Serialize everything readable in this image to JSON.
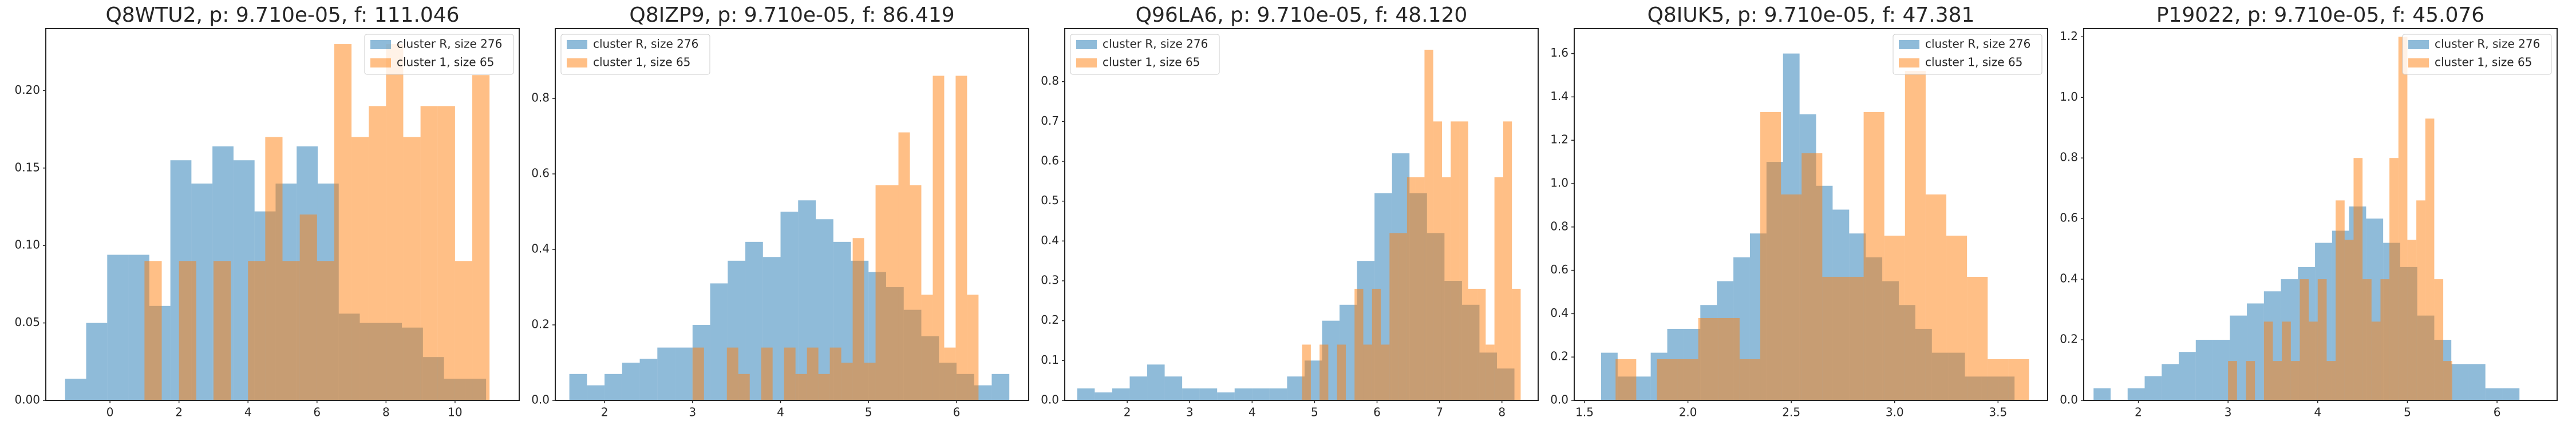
{
  "chart_data": [
    {
      "type": "histogram",
      "title": "Q8WTU2, p: 9.710e-05, f: 111.046",
      "legend": "upper right",
      "xlim": [
        -1.86,
        11.86
      ],
      "xticks": [
        0,
        2,
        4,
        6,
        8,
        10
      ],
      "ylim": [
        0,
        0.24
      ],
      "yticks": [
        {
          "value": 0,
          "label": "0.00"
        },
        0.05,
        {
          "value": 0.1,
          "label": "0.10"
        },
        0.15,
        {
          "value": 0.2,
          "label": "0.20"
        }
      ],
      "series": [
        {
          "name": "cluster R, size 276",
          "color": "#1f77b4",
          "bins": [
            -1.3,
            -0.69,
            -0.08,
            0.53,
            1.14,
            1.75,
            2.36,
            2.97,
            3.58,
            4.19,
            4.8,
            5.41,
            6.02,
            6.63,
            7.24,
            7.85,
            8.46,
            9.07,
            9.68,
            10.29,
            10.9
          ],
          "values": [
            0.014,
            0.05,
            0.094,
            0.094,
            0.061,
            0.155,
            0.14,
            0.164,
            0.155,
            0.122,
            0.14,
            0.164,
            0.14,
            0.056,
            0.05,
            0.05,
            0.047,
            0.028,
            0.014,
            0.014
          ]
        },
        {
          "name": "cluster 1, size 65",
          "color": "#ff7f0e",
          "bins": [
            1,
            1.5,
            2,
            2.5,
            3,
            3.5,
            4,
            4.5,
            5,
            5.5,
            6,
            6.5,
            7,
            7.5,
            8,
            8.5,
            9,
            9.5,
            10,
            10.5,
            11
          ],
          "values": [
            0.09,
            0,
            0.09,
            0,
            0.09,
            0,
            0.09,
            0.17,
            0.09,
            0.12,
            0.09,
            0.23,
            0.17,
            0.19,
            0.23,
            0.17,
            0.19,
            0.19,
            0.09,
            0.21
          ]
        }
      ]
    },
    {
      "type": "histogram",
      "title": "Q8IZP9, p: 9.710e-05, f: 86.419",
      "legend": "upper left",
      "xlim": [
        1.44,
        6.82
      ],
      "xticks": [
        2,
        3,
        4,
        5,
        6
      ],
      "ylim": [
        0,
        0.985
      ],
      "yticks": [
        {
          "value": 0,
          "label": "0.0"
        },
        0.2,
        0.4,
        0.6,
        0.8
      ],
      "series": [
        {
          "name": "cluster R, size 276",
          "color": "#1f77b4",
          "bins": [
            1.6,
            1.8,
            2,
            2.2,
            2.4,
            2.6,
            2.8,
            3,
            3.2,
            3.4,
            3.6,
            3.8,
            4,
            4.2,
            4.4,
            4.6,
            4.8,
            5,
            5.2,
            5.4,
            5.6,
            5.8,
            6,
            6.2,
            6.4,
            6.6
          ],
          "values": [
            0.07,
            0.04,
            0.07,
            0.1,
            0.11,
            0.14,
            0.14,
            0.2,
            0.31,
            0.37,
            0.42,
            0.38,
            0.5,
            0.53,
            0.48,
            0.42,
            0.37,
            0.34,
            0.3,
            0.24,
            0.17,
            0.1,
            0.07,
            0.04,
            0.07
          ]
        },
        {
          "name": "cluster 1, size 65",
          "color": "#ff7f0e",
          "bins": [
            3,
            3.13,
            3.26,
            3.39,
            3.52,
            3.65,
            3.78,
            3.91,
            4.04,
            4.17,
            4.3,
            4.43,
            4.56,
            4.69,
            4.82,
            4.95,
            5.08,
            5.21,
            5.34,
            5.47,
            5.6,
            5.73,
            5.86,
            5.99,
            6.12,
            6.25
          ],
          "values": [
            0.14,
            0,
            0,
            0.14,
            0.07,
            0,
            0.14,
            0,
            0.14,
            0.07,
            0.14,
            0.07,
            0.14,
            0.1,
            0.43,
            0.1,
            0.57,
            0.57,
            0.71,
            0.57,
            0.28,
            0.86,
            0.14,
            0.86,
            0.28
          ]
        }
      ]
    },
    {
      "type": "histogram",
      "title": "Q96LA6, p: 9.710e-05, f: 48.120",
      "legend": "upper left",
      "xlim": [
        1,
        8.58
      ],
      "xticks": [
        2,
        3,
        4,
        5,
        6,
        7,
        8
      ],
      "ylim": [
        0,
        0.933
      ],
      "yticks": [
        {
          "value": 0,
          "label": "0.0"
        },
        0.1,
        0.2,
        0.3,
        0.4,
        0.5,
        0.6,
        0.7,
        0.8
      ],
      "series": [
        {
          "name": "cluster R, size 276",
          "color": "#1f77b4",
          "bins": [
            1.2,
            1.48,
            1.76,
            2.04,
            2.32,
            2.6,
            2.88,
            3.16,
            3.44,
            3.72,
            4,
            4.28,
            4.56,
            4.84,
            5.12,
            5.4,
            5.68,
            5.96,
            6.24,
            6.52,
            6.8,
            7.08,
            7.36,
            7.64,
            7.92,
            8.2
          ],
          "values": [
            0.03,
            0.02,
            0.03,
            0.06,
            0.09,
            0.06,
            0.03,
            0.03,
            0.02,
            0.03,
            0.03,
            0.03,
            0.06,
            0.1,
            0.2,
            0.24,
            0.35,
            0.52,
            0.62,
            0.52,
            0.42,
            0.3,
            0.24,
            0.12,
            0.08
          ]
        },
        {
          "name": "cluster 1, size 65",
          "color": "#ff7f0e",
          "bins": [
            4.8,
            4.94,
            5.08,
            5.22,
            5.36,
            5.5,
            5.64,
            5.78,
            5.92,
            6.06,
            6.2,
            6.34,
            6.48,
            6.62,
            6.76,
            6.9,
            7.04,
            7.18,
            7.32,
            7.46,
            7.6,
            7.74,
            7.88,
            8.02,
            8.16,
            8.3
          ],
          "values": [
            0.14,
            0,
            0.14,
            0,
            0.14,
            0,
            0.28,
            0.14,
            0.28,
            0.14,
            0.42,
            0.42,
            0.56,
            0.56,
            0.88,
            0.7,
            0.56,
            0.7,
            0.7,
            0.28,
            0.28,
            0.14,
            0.56,
            0.7,
            0.28
          ]
        }
      ]
    },
    {
      "type": "histogram",
      "title": "Q8IUK5, p: 9.710e-05, f: 47.381",
      "legend": "upper right",
      "xlim": [
        1.45,
        3.74
      ],
      "xticks": [
        1.5,
        {
          "value": 2,
          "label": "2.0"
        },
        2.5,
        {
          "value": 3,
          "label": "3.0"
        },
        3.5
      ],
      "ylim": [
        0,
        1.715
      ],
      "yticks": [
        {
          "value": 0,
          "label": "0.0"
        },
        0.2,
        0.4,
        0.6,
        0.8,
        {
          "value": 1,
          "label": "1.0"
        },
        1.2,
        1.4,
        1.6
      ],
      "series": [
        {
          "name": "cluster R, size 276",
          "color": "#1f77b4",
          "bins": [
            1.58,
            1.66,
            1.74,
            1.82,
            1.9,
            1.98,
            2.06,
            2.14,
            2.22,
            2.3,
            2.38,
            2.46,
            2.54,
            2.62,
            2.7,
            2.78,
            2.86,
            2.94,
            3.02,
            3.1,
            3.18,
            3.26,
            3.34,
            3.42,
            3.5,
            3.58
          ],
          "values": [
            0.22,
            0.11,
            0.11,
            0.22,
            0.33,
            0.33,
            0.44,
            0.55,
            0.66,
            0.77,
            1.1,
            1.6,
            1.32,
            0.99,
            0.88,
            0.77,
            0.66,
            0.55,
            0.44,
            0.33,
            0.22,
            0.22,
            0.11,
            0.11,
            0.11
          ]
        },
        {
          "name": "cluster 1, size 65",
          "color": "#ff7f0e",
          "bins": [
            1.65,
            1.75,
            1.85,
            1.95,
            2.05,
            2.15,
            2.25,
            2.35,
            2.45,
            2.55,
            2.65,
            2.75,
            2.85,
            2.95,
            3.05,
            3.15,
            3.25,
            3.35,
            3.45,
            3.55,
            3.65
          ],
          "values": [
            0.19,
            0,
            0.19,
            0.19,
            0.38,
            0.38,
            0.19,
            1.33,
            0.95,
            1.14,
            0.57,
            0.57,
            1.33,
            0.76,
            1.52,
            0.95,
            0.76,
            0.57,
            0.19,
            0.19
          ]
        }
      ]
    },
    {
      "type": "histogram",
      "title": "P19022, p: 9.710e-05, f: 45.076",
      "legend": "upper right",
      "xlim": [
        1.39,
        6.67
      ],
      "xticks": [
        2,
        3,
        4,
        5,
        6
      ],
      "ylim": [
        0,
        1.227
      ],
      "yticks": [
        {
          "value": 0,
          "label": "0.0"
        },
        0.2,
        0.4,
        0.6,
        0.8,
        {
          "value": 1,
          "label": "1.0"
        },
        1.2
      ],
      "series": [
        {
          "name": "cluster R, size 276",
          "color": "#1f77b4",
          "bins": [
            1.5,
            1.69,
            1.88,
            2.07,
            2.26,
            2.45,
            2.64,
            2.83,
            3.02,
            3.21,
            3.4,
            3.59,
            3.78,
            3.97,
            4.16,
            4.35,
            4.54,
            4.73,
            4.92,
            5.11,
            5.3,
            5.49,
            5.68,
            5.87,
            6.06,
            6.25
          ],
          "values": [
            0.04,
            0,
            0.04,
            0.08,
            0.12,
            0.16,
            0.2,
            0.2,
            0.28,
            0.32,
            0.36,
            0.4,
            0.44,
            0.52,
            0.56,
            0.64,
            0.6,
            0.52,
            0.44,
            0.28,
            0.2,
            0.12,
            0.12,
            0.04,
            0.04
          ]
        },
        {
          "name": "cluster 1, size 65",
          "color": "#ff7f0e",
          "bins": [
            3,
            3.1,
            3.2,
            3.3,
            3.4,
            3.5,
            3.6,
            3.7,
            3.8,
            3.9,
            4,
            4.1,
            4.2,
            4.3,
            4.4,
            4.5,
            4.6,
            4.7,
            4.8,
            4.9,
            5,
            5.1,
            5.2,
            5.3,
            5.4,
            5.5
          ],
          "values": [
            0.13,
            0,
            0.13,
            0,
            0.26,
            0.13,
            0.26,
            0.13,
            0.4,
            0.26,
            0.4,
            0.13,
            0.66,
            0.53,
            0.8,
            0.4,
            0.26,
            0.4,
            0.8,
            1.2,
            0.53,
            0.66,
            0.93,
            0.4,
            0.13
          ]
        }
      ]
    }
  ]
}
